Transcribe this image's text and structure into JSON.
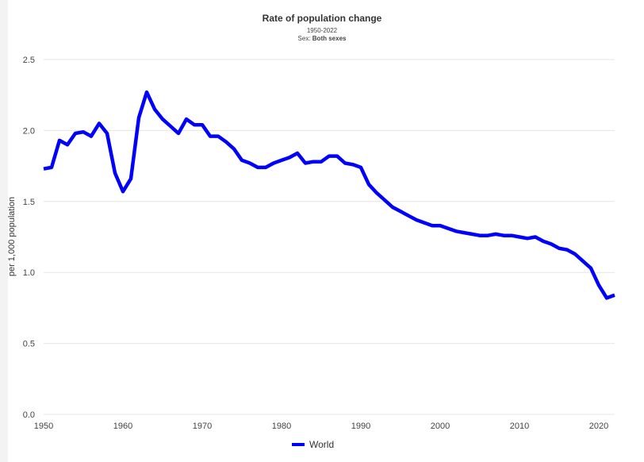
{
  "chart_data": {
    "type": "line",
    "title": "Rate of population change",
    "subtitle_range": "1950-2022",
    "subtitle_sex_label": "Sex:",
    "subtitle_sex_value": "Both sexes",
    "xlabel": "",
    "ylabel": "per 1,000 population",
    "xlim": [
      1950,
      2022
    ],
    "ylim": [
      0,
      2.5
    ],
    "x_ticks": [
      1950,
      1960,
      1970,
      1980,
      1990,
      2000,
      2010,
      2020
    ],
    "y_ticks": [
      "0.0",
      "0.5",
      "1.0",
      "1.5",
      "2.0",
      "2.5"
    ],
    "grid": true,
    "legend_position": "bottom",
    "series": [
      {
        "name": "World",
        "color": "#0000ff",
        "x": [
          1950,
          1951,
          1952,
          1953,
          1954,
          1955,
          1956,
          1957,
          1958,
          1959,
          1960,
          1961,
          1962,
          1963,
          1964,
          1965,
          1966,
          1967,
          1968,
          1969,
          1970,
          1971,
          1972,
          1973,
          1974,
          1975,
          1976,
          1977,
          1978,
          1979,
          1980,
          1981,
          1982,
          1983,
          1984,
          1985,
          1986,
          1987,
          1988,
          1989,
          1990,
          1991,
          1992,
          1993,
          1994,
          1995,
          1996,
          1997,
          1998,
          1999,
          2000,
          2001,
          2002,
          2003,
          2004,
          2005,
          2006,
          2007,
          2008,
          2009,
          2010,
          2011,
          2012,
          2013,
          2014,
          2015,
          2016,
          2017,
          2018,
          2019,
          2020,
          2021,
          2022
        ],
        "values": [
          1.73,
          1.74,
          1.93,
          1.9,
          1.98,
          1.99,
          1.96,
          2.05,
          1.98,
          1.7,
          1.57,
          1.66,
          2.09,
          2.27,
          2.15,
          2.08,
          2.03,
          1.98,
          2.08,
          2.04,
          2.04,
          1.96,
          1.96,
          1.92,
          1.87,
          1.79,
          1.77,
          1.74,
          1.74,
          1.77,
          1.79,
          1.81,
          1.84,
          1.77,
          1.78,
          1.78,
          1.82,
          1.82,
          1.77,
          1.76,
          1.74,
          1.62,
          1.56,
          1.51,
          1.46,
          1.43,
          1.4,
          1.37,
          1.35,
          1.33,
          1.33,
          1.31,
          1.29,
          1.28,
          1.27,
          1.26,
          1.26,
          1.27,
          1.26,
          1.26,
          1.25,
          1.24,
          1.25,
          1.22,
          1.2,
          1.17,
          1.16,
          1.13,
          1.08,
          1.03,
          0.91,
          0.82,
          0.84
        ]
      }
    ]
  }
}
